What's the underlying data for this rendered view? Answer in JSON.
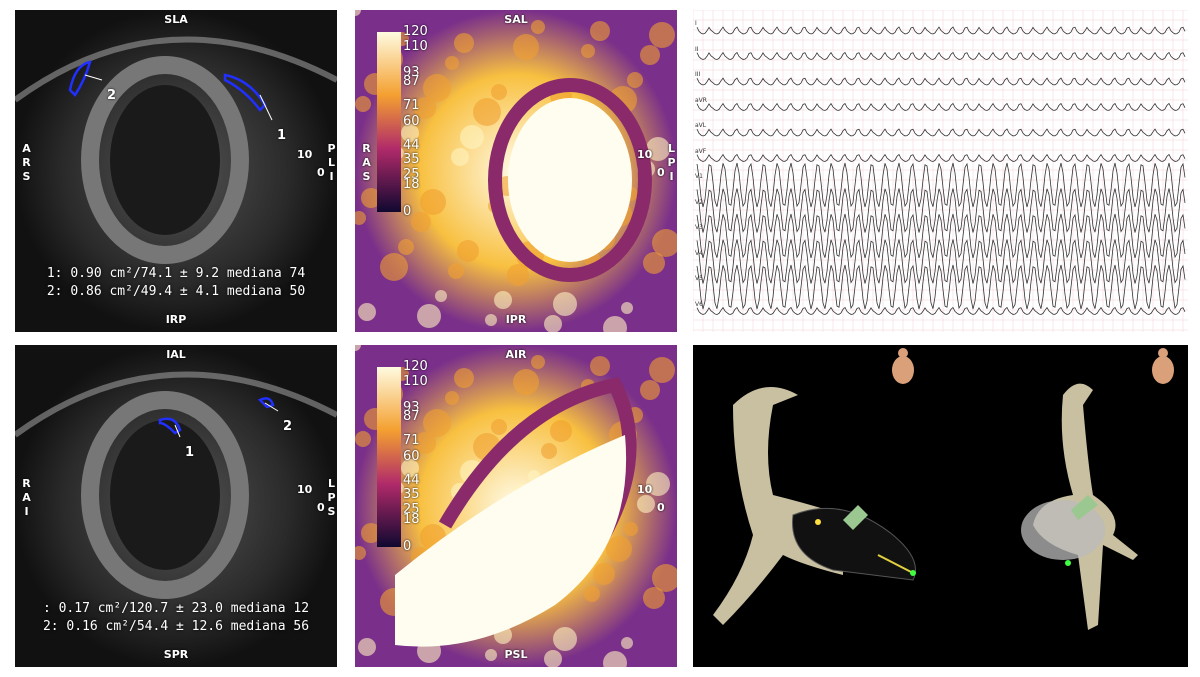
{
  "panels": [
    {
      "top": "SLA",
      "bottom": "IRP",
      "left": "ARS",
      "right": "PLI",
      "scale": [
        "10",
        "0"
      ],
      "rois": [
        "1",
        "2"
      ],
      "measures": [
        "1: 0.90 cm²/74.1 ± 9.2 mediana 74",
        "2: 0.86 cm²/49.4 ± 4.1 mediana 50"
      ]
    },
    {
      "top": "SAL",
      "bottom": "IPR",
      "left": "RAS",
      "right": "LPI",
      "scale": [
        "10",
        "0"
      ],
      "colorbar": [
        120,
        110,
        93,
        87,
        71,
        60,
        44,
        35,
        25,
        18,
        0
      ]
    },
    {
      "top": "IAL",
      "bottom": "SPR",
      "left": "RAI",
      "right": "LPS",
      "scale": [
        "10",
        "0"
      ],
      "rois": [
        "1",
        "2"
      ],
      "measures": [
        ": 0.17 cm²/120.7 ± 23.0 mediana 12",
        "2: 0.16 cm²/54.4 ± 12.6 mediana 56"
      ]
    },
    {
      "top": "AIR",
      "bottom": "PSL",
      "scale": [
        "10",
        "0"
      ],
      "colorbar": [
        120,
        110,
        93,
        87,
        71,
        60,
        44,
        35,
        25,
        18,
        0
      ]
    }
  ],
  "ecg": {
    "leads": [
      "I",
      "II",
      "III",
      "aVR",
      "aVL",
      "aVF",
      "V1",
      "V2",
      "V3",
      "V4",
      "V5",
      "V6"
    ]
  }
}
